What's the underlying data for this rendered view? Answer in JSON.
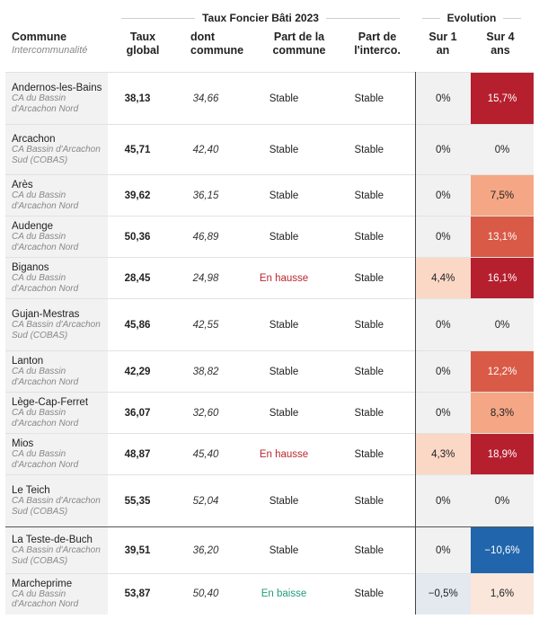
{
  "groups": {
    "taux": "Taux Foncier Bâti 2023",
    "evolution": "Evolution"
  },
  "headers": {
    "commune": "Commune",
    "intercommunalite": "Intercommunalité",
    "taux_global_1": "Taux",
    "taux_global_2": "global",
    "dont_commune_1": "dont",
    "dont_commune_2": "commune",
    "part_commune_1": "Part de la",
    "part_commune_2": "commune",
    "part_interco_1": "Part de",
    "part_interco_2": "l'interco.",
    "sur1_1": "Sur 1",
    "sur1_2": "an",
    "sur4_1": "Sur 4",
    "sur4_2": "ans"
  },
  "colors": {
    "dark_red": "#b51f2e",
    "red": "#d95a46",
    "orange": "#f5a785",
    "light_peach": "#fbd8c6",
    "pale_peach": "#fbe6dc",
    "neutral": "#f1f1f1",
    "blue": "#2166ac",
    "pale_blue": "#e4e9f0",
    "hausse_text": "#b9272f",
    "baisse_text": "#1f9e7a"
  },
  "rows": [
    {
      "commune": "Andernos-les-Bains",
      "interco": "CA du Bassin d'Arcachon Nord",
      "taux": "38,13",
      "dont": "34,66",
      "part_commune": "Stable",
      "part_interco": "Stable",
      "sur1": "0%",
      "sur4": "15,7%"
    },
    {
      "commune": "Arcachon",
      "interco": "CA Bassin d'Arcachon Sud (COBAS)",
      "taux": "45,71",
      "dont": "42,40",
      "part_commune": "Stable",
      "part_interco": "Stable",
      "sur1": "0%",
      "sur4": "0%"
    },
    {
      "commune": "Arès",
      "interco": "CA du Bassin d'Arcachon Nord",
      "taux": "39,62",
      "dont": "36,15",
      "part_commune": "Stable",
      "part_interco": "Stable",
      "sur1": "0%",
      "sur4": "7,5%"
    },
    {
      "commune": "Audenge",
      "interco": "CA du Bassin d'Arcachon Nord",
      "taux": "50,36",
      "dont": "46,89",
      "part_commune": "Stable",
      "part_interco": "Stable",
      "sur1": "0%",
      "sur4": "13,1%"
    },
    {
      "commune": "Biganos",
      "interco": "CA du Bassin d'Arcachon Nord",
      "taux": "28,45",
      "dont": "24,98",
      "part_commune": "En hausse",
      "part_interco": "Stable",
      "sur1": "4,4%",
      "sur4": "16,1%"
    },
    {
      "commune": "Gujan-Mestras",
      "interco": "CA Bassin d'Arcachon Sud (COBAS)",
      "taux": "45,86",
      "dont": "42,55",
      "part_commune": "Stable",
      "part_interco": "Stable",
      "sur1": "0%",
      "sur4": "0%"
    },
    {
      "commune": "Lanton",
      "interco": "CA du Bassin d'Arcachon Nord",
      "taux": "42,29",
      "dont": "38,82",
      "part_commune": "Stable",
      "part_interco": "Stable",
      "sur1": "0%",
      "sur4": "12,2%"
    },
    {
      "commune": "Lège-Cap-Ferret",
      "interco": "CA du Bassin d'Arcachon Nord",
      "taux": "36,07",
      "dont": "32,60",
      "part_commune": "Stable",
      "part_interco": "Stable",
      "sur1": "0%",
      "sur4": "8,3%"
    },
    {
      "commune": "Mios",
      "interco": "CA du Bassin d'Arcachon Nord",
      "taux": "48,87",
      "dont": "45,40",
      "part_commune": "En hausse",
      "part_interco": "Stable",
      "sur1": "4,3%",
      "sur4": "18,9%"
    },
    {
      "commune": "Le Teich",
      "interco": "CA Bassin d'Arcachon Sud (COBAS)",
      "taux": "55,35",
      "dont": "52,04",
      "part_commune": "Stable",
      "part_interco": "Stable",
      "sur1": "0%",
      "sur4": "0%"
    },
    {
      "commune": "La Teste-de-Buch",
      "interco": "CA Bassin d'Arcachon Sud (COBAS)",
      "taux": "39,51",
      "dont": "36,20",
      "part_commune": "Stable",
      "part_interco": "Stable",
      "sur1": "0%",
      "sur4": "−10,6%"
    },
    {
      "commune": "Marcheprime",
      "interco": "CA du Bassin d'Arcachon Nord",
      "taux": "53,87",
      "dont": "50,40",
      "part_commune": "En baisse",
      "part_interco": "Stable",
      "sur1": "−0,5%",
      "sur4": "1,6%"
    }
  ]
}
